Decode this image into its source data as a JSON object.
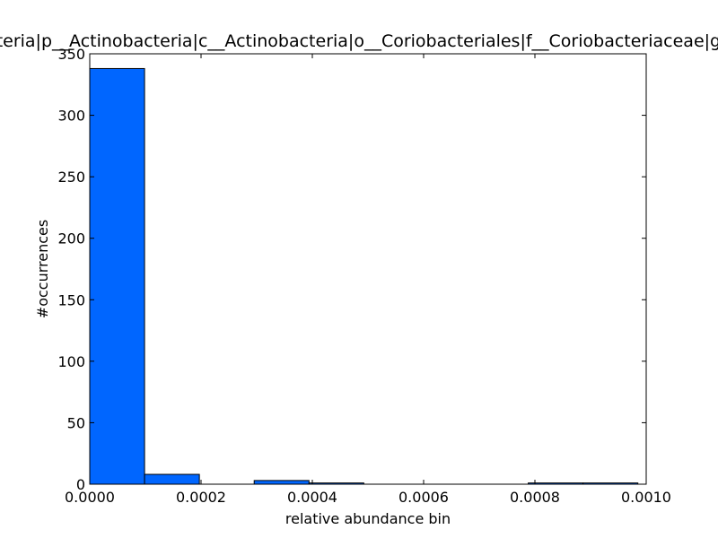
{
  "chart_data": {
    "type": "bar",
    "title": "k__Bacteria|p__Actinobacteria|c__Actinobacteria|o__Coriobacteriales|f__Coriobacteriaceae|g__Slackia",
    "xlabel": "relative abundance bin",
    "ylabel": "#occurrences",
    "xlim": [
      0,
      0.001
    ],
    "ylim": [
      0,
      350
    ],
    "grid": false,
    "bar_color": "#0066ff",
    "bar_edge_color": "#000000",
    "bins": [
      {
        "start": 0.0,
        "end": 9.85e-05,
        "count": 338
      },
      {
        "start": 9.85e-05,
        "end": 0.000197,
        "count": 8
      },
      {
        "start": 0.000197,
        "end": 0.0002955,
        "count": 0
      },
      {
        "start": 0.0002955,
        "end": 0.000394,
        "count": 3
      },
      {
        "start": 0.000394,
        "end": 0.0004925,
        "count": 1
      },
      {
        "start": 0.0004925,
        "end": 0.000591,
        "count": 0
      },
      {
        "start": 0.000591,
        "end": 0.0006895,
        "count": 0
      },
      {
        "start": 0.0006895,
        "end": 0.000788,
        "count": 0
      },
      {
        "start": 0.000788,
        "end": 0.0008865,
        "count": 1
      },
      {
        "start": 0.0008865,
        "end": 0.000985,
        "count": 1
      }
    ],
    "xticks": [
      {
        "value": 0.0,
        "label": "0.0000"
      },
      {
        "value": 0.0002,
        "label": "0.0002"
      },
      {
        "value": 0.0004,
        "label": "0.0004"
      },
      {
        "value": 0.0006,
        "label": "0.0006"
      },
      {
        "value": 0.0008,
        "label": "0.0008"
      },
      {
        "value": 0.001,
        "label": "0.0010"
      }
    ],
    "yticks": [
      {
        "value": 0,
        "label": "0"
      },
      {
        "value": 50,
        "label": "50"
      },
      {
        "value": 100,
        "label": "100"
      },
      {
        "value": 150,
        "label": "150"
      },
      {
        "value": 200,
        "label": "200"
      },
      {
        "value": 250,
        "label": "250"
      },
      {
        "value": 300,
        "label": "300"
      },
      {
        "value": 350,
        "label": "350"
      }
    ]
  }
}
